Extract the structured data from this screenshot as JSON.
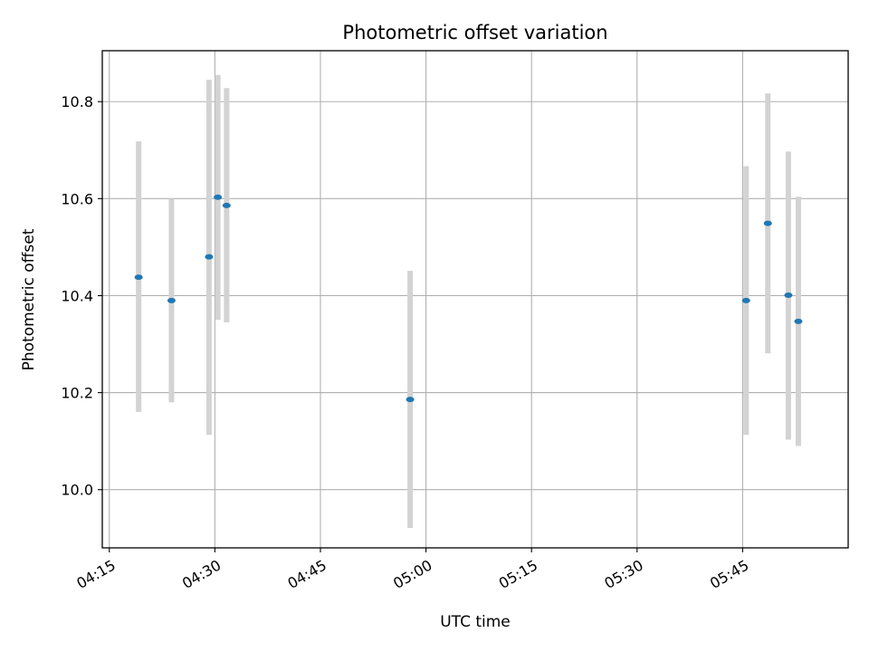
{
  "chart_data": {
    "type": "scatter",
    "title": "Photometric offset variation",
    "xlabel": "UTC time",
    "ylabel": "Photometric offset",
    "grid": true,
    "x_unit": "time of day (HH:MM, UTC)",
    "xlim": [
      "04:14",
      "06:00"
    ],
    "ylim": [
      9.88,
      10.905
    ],
    "x_ticks": [
      "04:15",
      "04:30",
      "04:45",
      "05:00",
      "05:15",
      "05:30",
      "05:45"
    ],
    "y_ticks": [
      "10.0",
      "10.2",
      "10.4",
      "10.6",
      "10.8"
    ],
    "series": [
      {
        "marker_color": "#1f77b4",
        "errorbar_color": "#d3d3d3",
        "points": [
          {
            "x": "04:19:10",
            "y": 10.438,
            "ylow": 10.16,
            "yhigh": 10.718
          },
          {
            "x": "04:23:50",
            "y": 10.39,
            "ylow": 10.18,
            "yhigh": 10.6
          },
          {
            "x": "04:29:10",
            "y": 10.48,
            "ylow": 10.113,
            "yhigh": 10.845
          },
          {
            "x": "04:30:25",
            "y": 10.603,
            "ylow": 10.35,
            "yhigh": 10.855
          },
          {
            "x": "04:31:40",
            "y": 10.586,
            "ylow": 10.345,
            "yhigh": 10.828
          },
          {
            "x": "04:57:45",
            "y": 10.186,
            "ylow": 9.921,
            "yhigh": 10.451
          },
          {
            "x": "05:45:30",
            "y": 10.39,
            "ylow": 10.113,
            "yhigh": 10.667
          },
          {
            "x": "05:48:35",
            "y": 10.549,
            "ylow": 10.281,
            "yhigh": 10.817
          },
          {
            "x": "05:51:30",
            "y": 10.401,
            "ylow": 10.103,
            "yhigh": 10.697
          },
          {
            "x": "05:52:55",
            "y": 10.347,
            "ylow": 10.09,
            "yhigh": 10.604
          }
        ]
      }
    ]
  }
}
